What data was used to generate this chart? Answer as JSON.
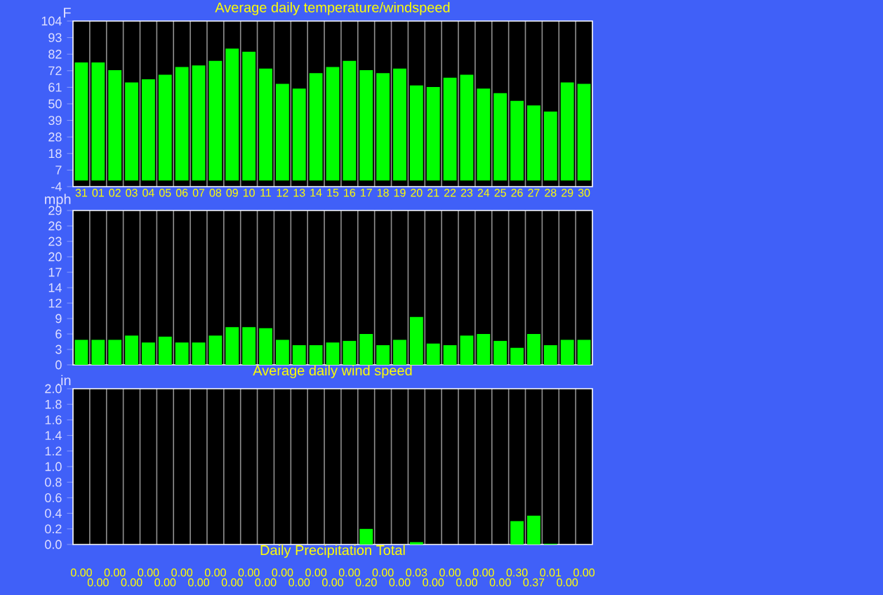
{
  "chart_data": [
    {
      "type": "bar",
      "title": "Average daily temperature/windspeed",
      "ylabel": "F",
      "color": "#00ff00",
      "grid": "x",
      "categories": [
        "31",
        "01",
        "02",
        "03",
        "04",
        "05",
        "06",
        "07",
        "08",
        "09",
        "10",
        "11",
        "12",
        "13",
        "14",
        "15",
        "16",
        "17",
        "18",
        "19",
        "20",
        "21",
        "22",
        "23",
        "24",
        "25",
        "26",
        "27",
        "28",
        "29",
        "30"
      ],
      "values": [
        77,
        77,
        72,
        64,
        66,
        69,
        74,
        75,
        78,
        86,
        84,
        73,
        63,
        60,
        70,
        74,
        78,
        72,
        70,
        73,
        62,
        61,
        67,
        69,
        60,
        57,
        52,
        49,
        45,
        64,
        63
      ],
      "ylim": [
        -4,
        104
      ],
      "yticks": [
        -4,
        {
          "value": 6.8,
          "label": "7"
        },
        {
          "value": 17.6,
          "label": "18"
        },
        {
          "value": 28.4,
          "label": "28"
        },
        {
          "value": 39.2,
          "label": "39"
        },
        50,
        {
          "value": 60.8,
          "label": "61"
        },
        {
          "value": 71.6,
          "label": "72"
        },
        {
          "value": 82.4,
          "label": "82"
        },
        {
          "value": 93.2,
          "label": "93"
        },
        104
      ]
    },
    {
      "type": "bar",
      "title": "Average daily wind speed",
      "ylabel": "mph",
      "color": "#00ff00",
      "grid": "x",
      "tick_labels": "y",
      "categories": [
        "31",
        "01",
        "02",
        "03",
        "04",
        "05",
        "06",
        "07",
        "08",
        "09",
        "10",
        "11",
        "12",
        "13",
        "14",
        "15",
        "16",
        "17",
        "18",
        "19",
        "20",
        "21",
        "22",
        "23",
        "24",
        "25",
        "26",
        "27",
        "28",
        "29",
        "30"
      ],
      "values": [
        4.7,
        4.7,
        4.7,
        5.5,
        4.2,
        5.3,
        4.2,
        4.2,
        5.5,
        7.1,
        7.1,
        6.9,
        4.7,
        3.7,
        3.7,
        4.2,
        4.5,
        5.8,
        3.7,
        4.7,
        9.0,
        4.0,
        3.7,
        5.5,
        5.8,
        4.5,
        3.2,
        5.8,
        3.7,
        4.7,
        4.7
      ],
      "ylim": [
        0,
        29
      ],
      "yticks": [
        0,
        {
          "value": 2.9,
          "label": "3"
        },
        {
          "value": 5.8,
          "label": "6"
        },
        {
          "value": 8.7,
          "label": "9"
        },
        {
          "value": 11.6,
          "label": "12"
        },
        {
          "value": 14.5,
          "label": "14"
        },
        {
          "value": 17.4,
          "label": "17"
        },
        {
          "value": 20.3,
          "label": "20"
        },
        {
          "value": 23.2,
          "label": "23"
        },
        {
          "value": 26.1,
          "label": "26"
        },
        29
      ]
    },
    {
      "type": "bar",
      "title": "Daily Precipitation Total",
      "ylabel": ".in",
      "color": "#00ff00",
      "grid": "x",
      "tick_labels": "y",
      "categories": [
        "31",
        "01",
        "02",
        "03",
        "04",
        "05",
        "06",
        "07",
        "08",
        "09",
        "10",
        "11",
        "12",
        "13",
        "14",
        "15",
        "16",
        "17",
        "18",
        "19",
        "20",
        "21",
        "22",
        "23",
        "24",
        "25",
        "26",
        "27",
        "28",
        "29",
        "30"
      ],
      "values": [
        0,
        0,
        0,
        0,
        0,
        0,
        0,
        0,
        0,
        0,
        0,
        0,
        0,
        0,
        0,
        0,
        0,
        0.2,
        0,
        0,
        0.03,
        0,
        0,
        0,
        0,
        0,
        0.3,
        0.37,
        0.01,
        0,
        0
      ],
      "value_labels": [
        "0.00",
        "0.00",
        "0.00",
        "0.00",
        "0.00",
        "0.00",
        "0.00",
        "0.00",
        "0.00",
        "0.00",
        "0.00",
        "0.00",
        "0.00",
        "0.00",
        "0.00",
        "0.00",
        "0.00",
        "0.20",
        "0.00",
        "0.00",
        "0.03",
        "0.00",
        "0.00",
        "0.00",
        "0.00",
        "0.00",
        "0.30",
        "0.37",
        "0.01",
        "0.00",
        "0.00"
      ],
      "ylim": [
        0,
        2.0
      ],
      "yticks": [
        {
          "value": 0,
          "label": "0.0"
        },
        {
          "value": 0.2,
          "label": "0.2"
        },
        {
          "value": 0.4,
          "label": "0.4"
        },
        {
          "value": 0.6,
          "label": "0.6"
        },
        {
          "value": 0.8,
          "label": "0.8"
        },
        {
          "value": 1.0,
          "label": "1.0"
        },
        {
          "value": 1.2,
          "label": "1.2"
        },
        {
          "value": 1.4,
          "label": "1.4"
        },
        {
          "value": 1.6,
          "label": "1.6"
        },
        {
          "value": 1.8,
          "label": "1.8"
        },
        {
          "value": 2.0,
          "label": "2.0"
        }
      ]
    }
  ]
}
